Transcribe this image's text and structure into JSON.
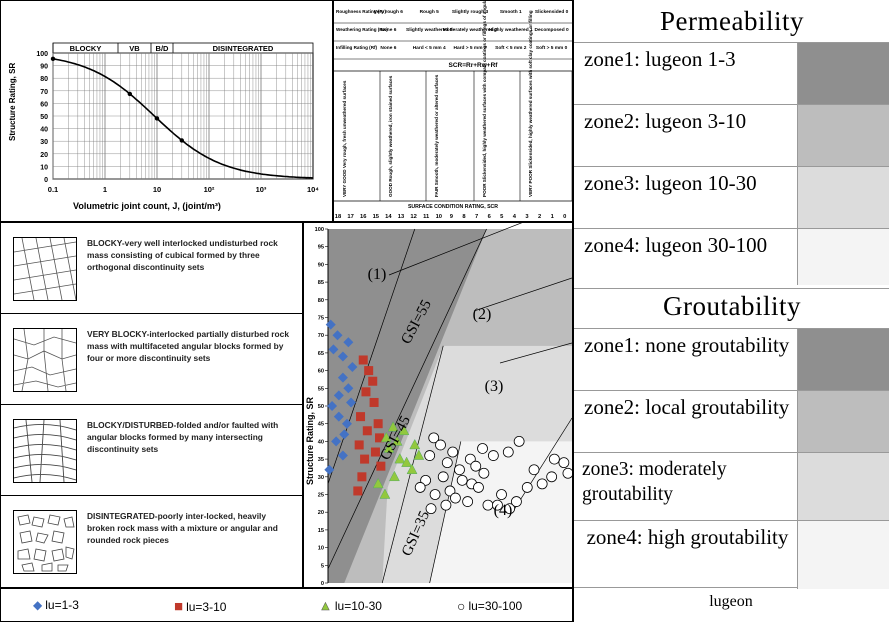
{
  "sr_curve": {
    "band_labels": [
      "BLOCKY",
      "VB",
      "B/D",
      "DISINTEGRATED"
    ],
    "ylabel": "Structure Rating, SR",
    "xlabel": "Volumetric joint count, J, (joint/m³)",
    "yticks": [
      "100",
      "90",
      "80",
      "70",
      "60",
      "50",
      "40",
      "30",
      "20",
      "10",
      "0"
    ],
    "xticks": [
      "0.1",
      "1",
      "10",
      "10²",
      "10³",
      "10⁴"
    ]
  },
  "rating_table": {
    "rows": [
      {
        "label": "Roughness Rating (Rr)",
        "cells": [
          "Very rough 6",
          "Rough 5",
          "Slightly rough 3",
          "Smooth 1",
          "Slickensided 0"
        ]
      },
      {
        "label": "Weathering Rating (Rw)",
        "cells": [
          "None 6",
          "Slightly weathered 5",
          "Moderately weathered 3",
          "Highly weathered 1",
          "Decomposed 0"
        ]
      },
      {
        "label": "Infilling Rating (Rf)",
        "cells": [
          "None 6",
          "Hard < 5 mm 4",
          "Hard > 5 mm 2",
          "Soft < 5 mm 2",
          "Soft > 5 mm 0"
        ]
      }
    ],
    "formula": "SCR=Rr+Rw+Rf",
    "conditions": [
      "VERY GOOD Very rough, fresh unweathered surfaces",
      "GOOD Rough, slightly weathered, iron stained surfaces",
      "FAIR Smooth, moderately weathered or altered surfaces",
      "POOR Slickensided, highly weathered surfaces with compact coatings or fillings of angular fragments",
      "VERY POOR Slickensided, highly weathered surfaces with soft clay coatings or filling"
    ],
    "scale_label": "SURFACE CONDITION RATING, SCR",
    "scr_ticks": [
      "18",
      "17",
      "16",
      "15",
      "14",
      "13",
      "12",
      "11",
      "10",
      "9",
      "8",
      "7",
      "6",
      "5",
      "4",
      "3",
      "2",
      "1",
      "0"
    ]
  },
  "structures": [
    {
      "text": "BLOCKY-very well interlocked undisturbed rock mass consisting of cubical formed by three orthogonal discontinuity sets"
    },
    {
      "text": "VERY BLOCKY-interlocked partially disturbed rock mass with multifaceted angular blocks formed by four or more discontinuity sets"
    },
    {
      "text": "BLOCKY/DISTURBED-folded and/or faulted with angular blocks formed by many intersecting discontinuity sets"
    },
    {
      "text": "DISINTEGRATED-poorly inter-locked, heavily broken rock mass with a mixture or angular and rounded rock pieces"
    }
  ],
  "chart_data": {
    "type": "scatter",
    "ylabel": "Structure Rating, SR",
    "xlabel": "",
    "xlim": [
      18,
      0
    ],
    "ylim": [
      0,
      100
    ],
    "yticks": [
      0,
      5,
      10,
      15,
      20,
      25,
      30,
      35,
      40,
      45,
      50,
      55,
      60,
      65,
      70,
      75,
      80,
      85,
      90,
      95,
      100
    ],
    "gsi_labels": [
      "GSI=55",
      "GSI=45",
      "GSI=35"
    ],
    "zone_labels": [
      "(1)",
      "(2)",
      "(3)",
      "(4)"
    ],
    "series": [
      {
        "name": "lu=1-3",
        "marker": "diamond",
        "color": "#4472C4",
        "points": [
          [
            17.8,
            73
          ],
          [
            17.3,
            70
          ],
          [
            16.5,
            68
          ],
          [
            17.6,
            66
          ],
          [
            16.9,
            64
          ],
          [
            16.2,
            61
          ],
          [
            16.9,
            58
          ],
          [
            16.5,
            55
          ],
          [
            17.2,
            53
          ],
          [
            16.3,
            51
          ],
          [
            17.7,
            50
          ],
          [
            17.2,
            47
          ],
          [
            16.6,
            45
          ],
          [
            16.8,
            42
          ],
          [
            17.4,
            40
          ],
          [
            16.9,
            36
          ],
          [
            17.9,
            32
          ]
        ]
      },
      {
        "name": "lu=3-10",
        "marker": "square",
        "color": "#C0392B",
        "points": [
          [
            15.4,
            63
          ],
          [
            15.0,
            60
          ],
          [
            14.7,
            57
          ],
          [
            15.2,
            54
          ],
          [
            14.6,
            51
          ],
          [
            15.6,
            47
          ],
          [
            14.3,
            45
          ],
          [
            15.1,
            43
          ],
          [
            14.2,
            41
          ],
          [
            15.7,
            39
          ],
          [
            14.5,
            37
          ],
          [
            15.3,
            35
          ],
          [
            14.1,
            33
          ],
          [
            15.5,
            30
          ],
          [
            15.8,
            26
          ]
        ]
      },
      {
        "name": "lu=10-30",
        "marker": "triangle",
        "color": "#92C83E",
        "points": [
          [
            13.2,
            44
          ],
          [
            12.4,
            43
          ],
          [
            13.7,
            41
          ],
          [
            12.9,
            40
          ],
          [
            13.5,
            38
          ],
          [
            11.6,
            39
          ],
          [
            11.3,
            36
          ],
          [
            12.7,
            35
          ],
          [
            12.2,
            34
          ],
          [
            13.1,
            30
          ],
          [
            11.8,
            32
          ],
          [
            14.3,
            28
          ],
          [
            13.8,
            25
          ]
        ]
      },
      {
        "name": "lu=30-100",
        "marker": "circle",
        "color": "#ffffff",
        "points": [
          [
            10.2,
            41
          ],
          [
            9.7,
            39
          ],
          [
            8.8,
            37
          ],
          [
            10.5,
            36
          ],
          [
            9.2,
            34
          ],
          [
            7.5,
            35
          ],
          [
            7.1,
            33
          ],
          [
            8.3,
            32
          ],
          [
            6.5,
            31
          ],
          [
            9.5,
            30
          ],
          [
            10.8,
            29
          ],
          [
            8.1,
            29
          ],
          [
            7.4,
            28
          ],
          [
            6.9,
            27
          ],
          [
            9.0,
            26
          ],
          [
            10.1,
            25
          ],
          [
            8.6,
            24
          ],
          [
            7.7,
            23
          ],
          [
            6.2,
            22
          ],
          [
            5.5,
            22
          ],
          [
            4.6,
            21
          ],
          [
            4.1,
            23
          ],
          [
            9.3,
            22
          ],
          [
            10.4,
            21
          ],
          [
            5.2,
            25
          ],
          [
            3.3,
            27
          ],
          [
            2.2,
            28
          ],
          [
            1.5,
            30
          ],
          [
            0.6,
            34
          ],
          [
            1.3,
            35
          ],
          [
            0.3,
            31
          ],
          [
            4.7,
            37
          ],
          [
            3.9,
            40
          ],
          [
            5.8,
            36
          ],
          [
            6.6,
            38
          ],
          [
            2.8,
            32
          ],
          [
            11.2,
            27
          ]
        ]
      }
    ]
  },
  "legend": {
    "items": [
      {
        "symbol": "◆",
        "color": "#4472C4",
        "label": "lu=1-3"
      },
      {
        "symbol": "■",
        "color": "#C0392B",
        "label": "lu=3-10"
      },
      {
        "symbol": "▲",
        "color": "#92C83E",
        "label": "lu=10-30"
      },
      {
        "symbol": "○",
        "color": "#000000",
        "label": "lu=30-100"
      }
    ]
  },
  "side_panel": {
    "permeability_title": "Permeability",
    "permeability_zones": [
      {
        "label": "zone1: lugeon 1-3",
        "color": "#8f8f8f"
      },
      {
        "label": "zone2: lugeon 3-10",
        "color": "#bdbdbd"
      },
      {
        "label": "zone3: lugeon 10-30",
        "color": "#dcdcdc"
      },
      {
        "label": "zone4: lugeon 30-100",
        "color": "#f4f4f4"
      }
    ],
    "groutability_title": "Groutability",
    "groutability_zones": [
      {
        "label": "zone1: none groutability",
        "color": "#8f8f8f"
      },
      {
        "label": "zone2: local groutability",
        "color": "#bdbdbd"
      },
      {
        "label": "zone3: moderately groutability",
        "color": "#dcdcdc"
      },
      {
        "label": "zone4: high groutability",
        "color": "#f4f4f4"
      }
    ],
    "caption": "lugeon"
  }
}
